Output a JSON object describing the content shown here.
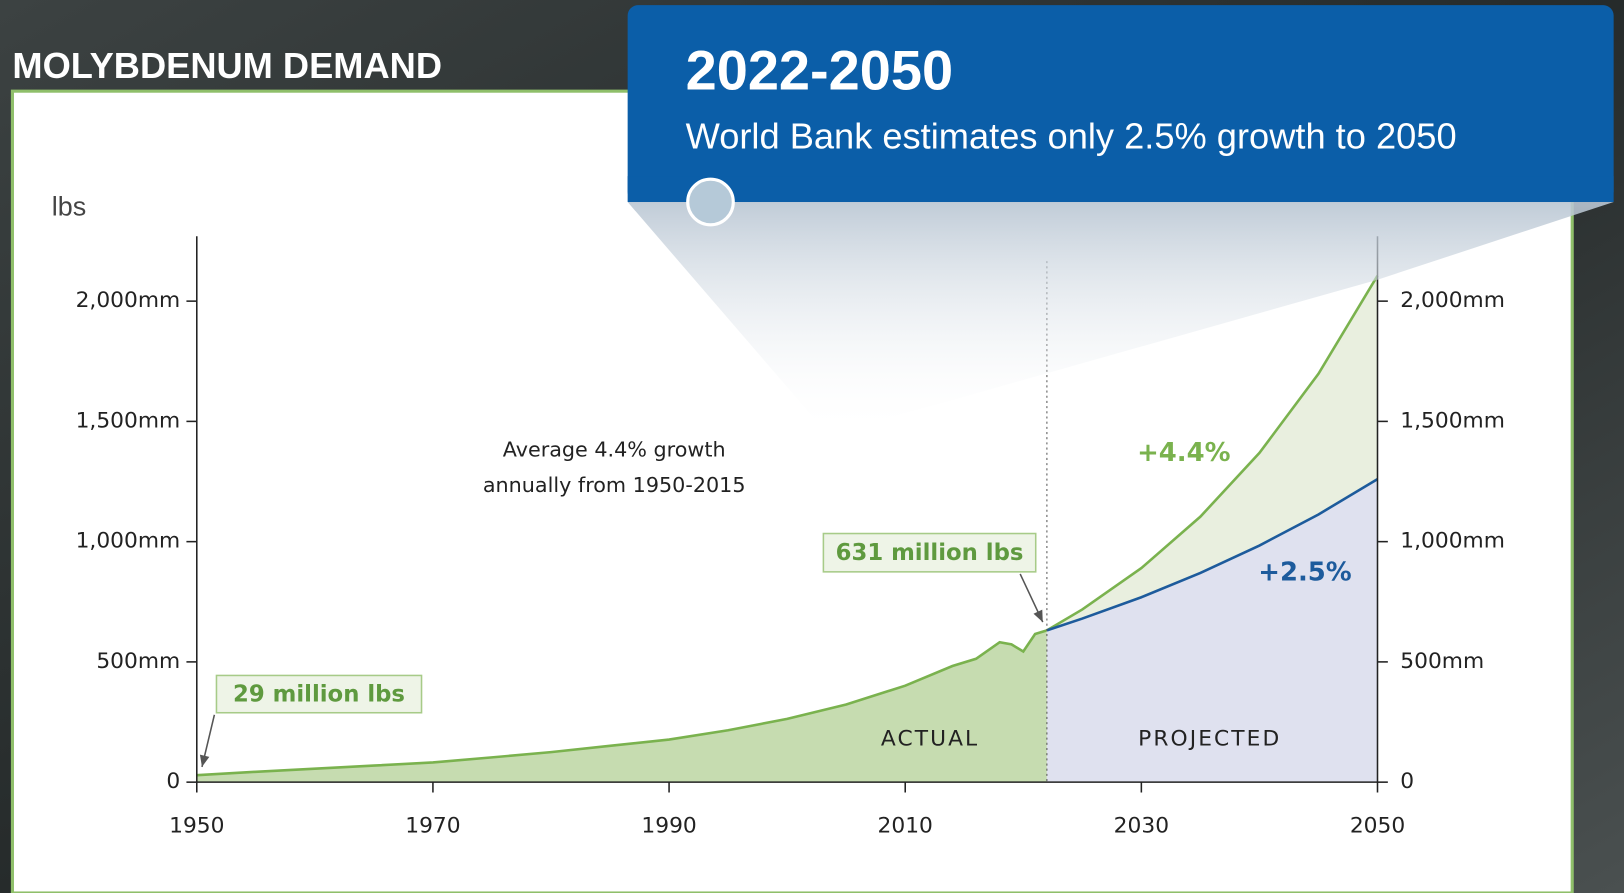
{
  "header": {
    "title": "MOLYBDENUM DEMAND"
  },
  "callout": {
    "title": "2022-2050",
    "text": "World Bank estimates only 2.5% growth to 2050"
  },
  "chart_data": {
    "type": "area",
    "y_label": "lbs",
    "xlim": [
      1950,
      2050
    ],
    "xticks": [
      1950,
      1970,
      1990,
      2010,
      2030,
      2050
    ],
    "ylim": [
      0,
      2270
    ],
    "yticks": [
      0,
      {
        "value": 500,
        "label": "500mm"
      },
      {
        "value": 1000,
        "label": "1,000mm"
      },
      {
        "value": 1500,
        "label": "1,500mm"
      },
      {
        "value": 2000,
        "label": "2,000mm"
      }
    ],
    "y2lim": [
      0,
      2270
    ],
    "y2ticks": [
      0,
      {
        "value": 500,
        "label": "500mm"
      },
      {
        "value": 1000,
        "label": "1,000mm"
      },
      {
        "value": 1500,
        "label": "1,500mm"
      },
      {
        "value": 2000,
        "label": "2,000mm"
      }
    ],
    "divider_x": 2022,
    "series": [
      {
        "name": "ACTUAL",
        "color": "#7ab24e",
        "fill": "#c6dcb0",
        "x": [
          1950,
          1955,
          1960,
          1965,
          1970,
          1975,
          1980,
          1985,
          1990,
          1995,
          2000,
          2005,
          2010,
          2014,
          2016,
          2018,
          2019,
          2020,
          2021,
          2022
        ],
        "values": [
          29,
          43,
          56,
          69,
          82,
          103,
          125,
          151,
          177,
          216,
          263,
          323,
          401,
          483,
          513,
          582,
          573,
          543,
          616,
          631
        ]
      },
      {
        "name": "+4.4%",
        "color": "#7ab24e",
        "fill": "#e9efdf",
        "x": [
          2022,
          2025,
          2030,
          2035,
          2040,
          2045,
          2050
        ],
        "values": [
          631,
          718,
          890,
          1104,
          1369,
          1698,
          2106
        ]
      },
      {
        "name": "+2.5%",
        "color": "#1d5b9c",
        "fill": "#dfe1ef",
        "x": [
          2022,
          2025,
          2030,
          2035,
          2040,
          2045,
          2050
        ],
        "values": [
          631,
          680,
          769,
          870,
          984,
          1113,
          1260
        ]
      }
    ],
    "annotations": [
      {
        "text": "29 million lbs",
        "x": 1950,
        "y": 29
      },
      {
        "text": "631 million lbs",
        "x": 2022,
        "y": 631
      }
    ],
    "note": [
      "Average 4.4% growth",
      "annually from 1950-2015"
    ],
    "region_labels": [
      "ACTUAL",
      "PROJECTED"
    ]
  }
}
